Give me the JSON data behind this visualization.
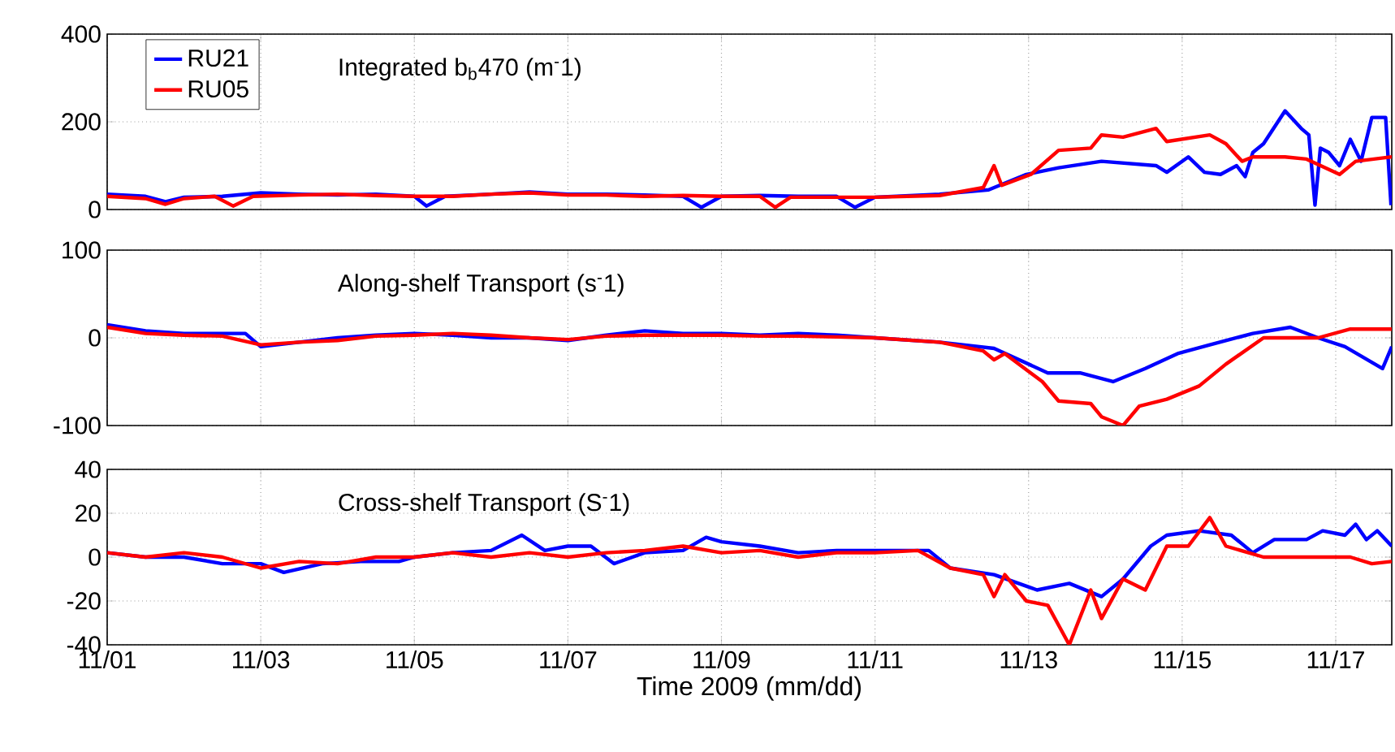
{
  "chart_data": [
    {
      "type": "line",
      "title": "Integrated b$_{b}$470 (m$^{-}$1)",
      "legend": "top left",
      "grid": true,
      "tick_labels": "y",
      "xlim": [
        "2009-11-01T00:00",
        "2009-11-17T17:31"
      ],
      "xticks": [
        {
          "value": "2009-11-01",
          "label": null
        },
        {
          "value": "2009-11-03",
          "label": null
        },
        {
          "value": "2009-11-05",
          "label": null
        },
        {
          "value": "2009-11-07",
          "label": null
        },
        {
          "value": "2009-11-09",
          "label": null
        },
        {
          "value": "2009-11-11",
          "label": null
        },
        {
          "value": "2009-11-13",
          "label": null
        },
        {
          "value": "2009-11-15",
          "label": null
        },
        {
          "value": "2009-11-17",
          "label": null
        }
      ],
      "ylim": [
        0,
        400
      ],
      "yticks": [
        0,
        200,
        400
      ],
      "series": [
        {
          "name": "RU21",
          "color": "#0000ff",
          "x": [
            "2009-11-01T00:00",
            "2009-11-01T12:00",
            "2009-11-01T18:14",
            "2009-11-02T00:00",
            "2009-11-02T12:00",
            "2009-11-03T00:00",
            "2009-11-03T12:00",
            "2009-11-04T00:00",
            "2009-11-04T12:00",
            "2009-11-05T00:00",
            "2009-11-05T03:50",
            "2009-11-05T09:36",
            "2009-11-06T00:00",
            "2009-11-06T12:00",
            "2009-11-07T00:00",
            "2009-11-07T12:00",
            "2009-11-08T00:00",
            "2009-11-08T12:00",
            "2009-11-08T17:46",
            "2009-11-09T00:00",
            "2009-11-09T12:00",
            "2009-11-10T00:00",
            "2009-11-10T12:00",
            "2009-11-10T17:46",
            "2009-11-11T00:00",
            "2009-11-11T20:10",
            "2009-11-12T11:31",
            "2009-11-12T23:17",
            "2009-11-13T09:22",
            "2009-11-13T22:48",
            "2009-11-14T15:50",
            "2009-11-14T19:12",
            "2009-11-15T01:55",
            "2009-11-15T06:58",
            "2009-11-15T12:00",
            "2009-11-15T17:02",
            "2009-11-15T19:41",
            "2009-11-15T22:05",
            "2009-11-16T01:26",
            "2009-11-16T08:10",
            "2009-11-16T13:12",
            "2009-11-16T15:36",
            "2009-11-16T17:31",
            "2009-11-16T19:12",
            "2009-11-16T21:50",
            "2009-11-17T01:12",
            "2009-11-17T04:34",
            "2009-11-17T07:55",
            "2009-11-17T11:17",
            "2009-11-17T15:36",
            "2009-11-17T17:17"
          ],
          "values": [
            35,
            30,
            18,
            28,
            30,
            38,
            35,
            33,
            35,
            30,
            8,
            30,
            35,
            40,
            35,
            35,
            33,
            30,
            5,
            30,
            32,
            30,
            30,
            5,
            28,
            35,
            45,
            80,
            95,
            110,
            100,
            85,
            120,
            85,
            80,
            100,
            75,
            130,
            150,
            225,
            185,
            170,
            10,
            140,
            130,
            100,
            160,
            110,
            210,
            210,
            10
          ]
        },
        {
          "name": "RU05",
          "color": "#ff0000",
          "x": [
            "2009-11-01T00:00",
            "2009-11-01T12:00",
            "2009-11-01T18:14",
            "2009-11-02T00:00",
            "2009-11-02T09:36",
            "2009-11-02T15:22",
            "2009-11-02T21:36",
            "2009-11-03T12:00",
            "2009-11-04T00:00",
            "2009-11-04T12:00",
            "2009-11-05T00:00",
            "2009-11-05T12:00",
            "2009-11-06T00:00",
            "2009-11-06T12:00",
            "2009-11-07T00:00",
            "2009-11-07T12:00",
            "2009-11-08T00:00",
            "2009-11-08T12:00",
            "2009-11-09T00:00",
            "2009-11-09T12:00",
            "2009-11-09T16:48",
            "2009-11-09T21:36",
            "2009-11-10T12:00",
            "2009-11-11T00:00",
            "2009-11-11T20:10",
            "2009-11-12T09:50",
            "2009-11-12T13:12",
            "2009-11-12T15:36",
            "2009-11-13T00:43",
            "2009-11-13T09:22",
            "2009-11-13T19:26",
            "2009-11-13T22:48",
            "2009-11-14T05:31",
            "2009-11-14T15:50",
            "2009-11-14T19:12",
            "2009-11-15T08:38",
            "2009-11-15T13:41",
            "2009-11-15T18:43",
            "2009-11-15T22:05",
            "2009-11-16T08:10",
            "2009-11-16T14:53",
            "2009-11-17T01:12",
            "2009-11-17T06:14",
            "2009-11-17T17:31"
          ],
          "values": [
            30,
            25,
            12,
            25,
            30,
            8,
            30,
            33,
            35,
            32,
            30,
            30,
            35,
            38,
            33,
            33,
            30,
            32,
            30,
            30,
            5,
            28,
            28,
            28,
            32,
            50,
            100,
            55,
            80,
            135,
            140,
            170,
            165,
            185,
            155,
            170,
            150,
            110,
            120,
            120,
            115,
            80,
            110,
            120
          ]
        }
      ]
    },
    {
      "type": "line",
      "title": "Along-shelf Transport (s$^{-}$1)",
      "grid": true,
      "tick_labels": "y",
      "xlim": [
        "2009-11-01T00:00",
        "2009-11-17T17:31"
      ],
      "xticks": [
        {
          "value": "2009-11-01",
          "label": null
        },
        {
          "value": "2009-11-03",
          "label": null
        },
        {
          "value": "2009-11-05",
          "label": null
        },
        {
          "value": "2009-11-07",
          "label": null
        },
        {
          "value": "2009-11-09",
          "label": null
        },
        {
          "value": "2009-11-11",
          "label": null
        },
        {
          "value": "2009-11-13",
          "label": null
        },
        {
          "value": "2009-11-15",
          "label": null
        },
        {
          "value": "2009-11-17",
          "label": null
        }
      ],
      "ylim": [
        -100,
        100
      ],
      "yticks": [
        -100,
        0,
        100
      ],
      "series": [
        {
          "color": "#0000ff",
          "x": [
            "2009-11-01T00:00",
            "2009-11-01T12:00",
            "2009-11-02T00:00",
            "2009-11-02T12:00",
            "2009-11-02T19:12",
            "2009-11-03T00:00",
            "2009-11-03T12:00",
            "2009-11-04T00:00",
            "2009-11-04T12:00",
            "2009-11-05T00:00",
            "2009-11-05T12:00",
            "2009-11-06T00:00",
            "2009-11-06T12:00",
            "2009-11-07T00:00",
            "2009-11-07T12:00",
            "2009-11-08T00:00",
            "2009-11-08T12:00",
            "2009-11-09T00:00",
            "2009-11-09T12:00",
            "2009-11-10T00:00",
            "2009-11-10T12:00",
            "2009-11-11T00:00",
            "2009-11-11T20:10",
            "2009-11-12T13:12",
            "2009-11-13T06:00",
            "2009-11-13T16:05",
            "2009-11-14T02:24",
            "2009-11-14T12:29",
            "2009-11-14T22:34",
            "2009-11-15T08:38",
            "2009-11-15T22:05",
            "2009-11-16T09:50",
            "2009-11-16T18:29",
            "2009-11-17T02:53",
            "2009-11-17T14:38",
            "2009-11-17T17:31"
          ],
          "values": [
            15,
            8,
            5,
            5,
            5,
            -10,
            -5,
            0,
            3,
            5,
            3,
            0,
            0,
            -3,
            3,
            8,
            5,
            5,
            3,
            5,
            3,
            0,
            -5,
            -12,
            -40,
            -40,
            -50,
            -35,
            -18,
            -8,
            5,
            12,
            0,
            -10,
            -35,
            -10
          ]
        },
        {
          "color": "#ff0000",
          "x": [
            "2009-11-01T00:00",
            "2009-11-01T12:00",
            "2009-11-02T00:00",
            "2009-11-02T12:00",
            "2009-11-03T00:00",
            "2009-11-03T12:00",
            "2009-11-04T00:00",
            "2009-11-04T12:00",
            "2009-11-05T00:00",
            "2009-11-05T12:00",
            "2009-11-06T00:00",
            "2009-11-06T12:00",
            "2009-11-07T00:00",
            "2009-11-07T12:00",
            "2009-11-08T00:00",
            "2009-11-08T12:00",
            "2009-11-09T00:00",
            "2009-11-09T12:00",
            "2009-11-10T00:00",
            "2009-11-10T12:00",
            "2009-11-11T00:00",
            "2009-11-11T20:10",
            "2009-11-12T09:50",
            "2009-11-12T13:12",
            "2009-11-12T16:34",
            "2009-11-13T04:19",
            "2009-11-13T09:22",
            "2009-11-13T19:26",
            "2009-11-13T22:48",
            "2009-11-14T05:31",
            "2009-11-14T10:34",
            "2009-11-14T19:12",
            "2009-11-15T05:17",
            "2009-11-15T13:41",
            "2009-11-16T01:26",
            "2009-11-16T18:29",
            "2009-11-17T04:34",
            "2009-11-17T17:31"
          ],
          "values": [
            12,
            5,
            3,
            2,
            -8,
            -5,
            -3,
            2,
            3,
            5,
            3,
            0,
            -2,
            2,
            3,
            3,
            3,
            2,
            2,
            1,
            0,
            -5,
            -15,
            -25,
            -18,
            -50,
            -72,
            -75,
            -90,
            -100,
            -78,
            -70,
            -55,
            -30,
            0,
            0,
            10,
            10
          ]
        }
      ]
    },
    {
      "type": "line",
      "title": "Cross-shelf Transport (S$^{-}$1)",
      "xlabel": "Time 2009 (mm/dd)",
      "grid": true,
      "xlim": [
        "2009-11-01T00:00",
        "2009-11-17T17:31"
      ],
      "xticks": [
        {
          "value": "2009-11-01",
          "label": "11/01"
        },
        {
          "value": "2009-11-03",
          "label": "11/03"
        },
        {
          "value": "2009-11-05",
          "label": "11/05"
        },
        {
          "value": "2009-11-07",
          "label": "11/07"
        },
        {
          "value": "2009-11-09",
          "label": "11/09"
        },
        {
          "value": "2009-11-11",
          "label": "11/11"
        },
        {
          "value": "2009-11-13",
          "label": "11/13"
        },
        {
          "value": "2009-11-15",
          "label": "11/15"
        },
        {
          "value": "2009-11-17",
          "label": "11/17"
        }
      ],
      "ylim": [
        -40,
        40
      ],
      "yticks": [
        -40,
        -20,
        0,
        20,
        40
      ],
      "series": [
        {
          "color": "#0000ff",
          "x": [
            "2009-11-01T00:00",
            "2009-11-01T12:00",
            "2009-11-02T00:00",
            "2009-11-02T12:00",
            "2009-11-03T00:00",
            "2009-11-03T07:12",
            "2009-11-03T19:12",
            "2009-11-04T07:12",
            "2009-11-04T19:12",
            "2009-11-05T00:00",
            "2009-11-05T12:00",
            "2009-11-06T00:00",
            "2009-11-06T09:36",
            "2009-11-06T16:48",
            "2009-11-07T00:00",
            "2009-11-07T07:12",
            "2009-11-07T14:24",
            "2009-11-08T00:00",
            "2009-11-08T12:00",
            "2009-11-08T19:12",
            "2009-11-09T00:00",
            "2009-11-09T12:00",
            "2009-11-10T00:00",
            "2009-11-10T12:00",
            "2009-11-11T00:00",
            "2009-11-11T16:48",
            "2009-11-11T23:31",
            "2009-11-12T13:12",
            "2009-11-13T02:38",
            "2009-11-13T12:43",
            "2009-11-13T22:48",
            "2009-11-14T05:31",
            "2009-11-14T14:10",
            "2009-11-14T19:12",
            "2009-11-15T05:17",
            "2009-11-15T15:22",
            "2009-11-15T22:05",
            "2009-11-16T04:48",
            "2009-11-16T14:53",
            "2009-11-16T19:55",
            "2009-11-17T02:53",
            "2009-11-17T06:14",
            "2009-11-17T09:36",
            "2009-11-17T12:58",
            "2009-11-17T17:31"
          ],
          "values": [
            2,
            0,
            0,
            -3,
            -3,
            -7,
            -3,
            -2,
            -2,
            0,
            2,
            3,
            10,
            3,
            5,
            5,
            -3,
            2,
            3,
            9,
            7,
            5,
            2,
            3,
            3,
            3,
            -5,
            -8,
            -15,
            -12,
            -18,
            -10,
            5,
            10,
            12,
            10,
            2,
            8,
            8,
            12,
            10,
            15,
            8,
            12,
            5
          ]
        },
        {
          "color": "#ff0000",
          "x": [
            "2009-11-01T00:00",
            "2009-11-01T12:00",
            "2009-11-02T00:00",
            "2009-11-02T12:00",
            "2009-11-03T00:00",
            "2009-11-03T12:00",
            "2009-11-04T00:00",
            "2009-11-04T12:00",
            "2009-11-05T00:00",
            "2009-11-05T12:00",
            "2009-11-06T00:00",
            "2009-11-06T12:00",
            "2009-11-07T00:00",
            "2009-11-07T12:00",
            "2009-11-08T00:00",
            "2009-11-08T12:00",
            "2009-11-09T00:00",
            "2009-11-09T12:00",
            "2009-11-10T00:00",
            "2009-11-10T12:00",
            "2009-11-11T00:00",
            "2009-11-11T13:26",
            "2009-11-11T23:31",
            "2009-11-12T09:50",
            "2009-11-12T13:12",
            "2009-11-12T16:34",
            "2009-11-12T23:17",
            "2009-11-13T06:00",
            "2009-11-13T12:43",
            "2009-11-13T19:26",
            "2009-11-13T22:48",
            "2009-11-14T05:31",
            "2009-11-14T12:29",
            "2009-11-14T19:12",
            "2009-11-15T01:55",
            "2009-11-15T08:38",
            "2009-11-15T13:41",
            "2009-11-16T01:26",
            "2009-11-17T04:34",
            "2009-11-17T11:17",
            "2009-11-17T17:31"
          ],
          "values": [
            2,
            0,
            2,
            0,
            -5,
            -2,
            -3,
            0,
            0,
            2,
            0,
            2,
            0,
            2,
            3,
            5,
            2,
            3,
            0,
            2,
            2,
            3,
            -5,
            -8,
            -18,
            -8,
            -20,
            -22,
            -40,
            -15,
            -28,
            -10,
            -15,
            5,
            5,
            18,
            5,
            0,
            0,
            -3,
            -2
          ]
        }
      ]
    }
  ]
}
